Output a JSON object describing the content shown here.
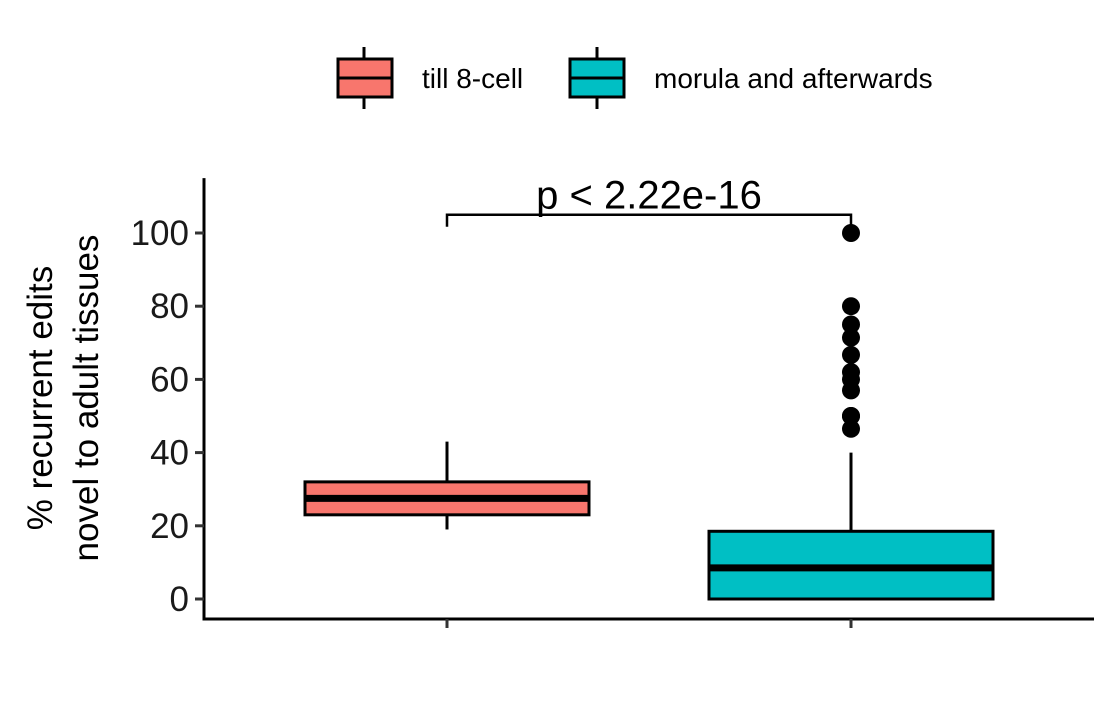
{
  "chart_data": {
    "type": "boxplot",
    "title": "",
    "ylabel_lines": [
      "% recurrent edits",
      "novel to adult tissues"
    ],
    "xlabel": "",
    "ylim": [
      -5,
      115
    ],
    "yticks": [
      0,
      20,
      40,
      60,
      80,
      100
    ],
    "grid": false,
    "legend_position": "top",
    "series": [
      {
        "name": "till 8-cell",
        "color": "#F8766D",
        "whisker_low": 19,
        "q1": 23,
        "median": 27.5,
        "q3": 32,
        "whisker_high": 43,
        "outliers": []
      },
      {
        "name": "morula and afterwards",
        "color": "#00BFC4",
        "whisker_low": 0,
        "q1": 0,
        "median": 8.5,
        "q3": 18.5,
        "whisker_high": 40,
        "outliers": [
          46.5,
          50,
          50,
          57,
          60,
          62,
          66.7,
          71.4,
          75,
          80,
          100
        ]
      }
    ],
    "annotation": {
      "text": "p < 2.22e-16",
      "bracket_y": 105
    }
  }
}
